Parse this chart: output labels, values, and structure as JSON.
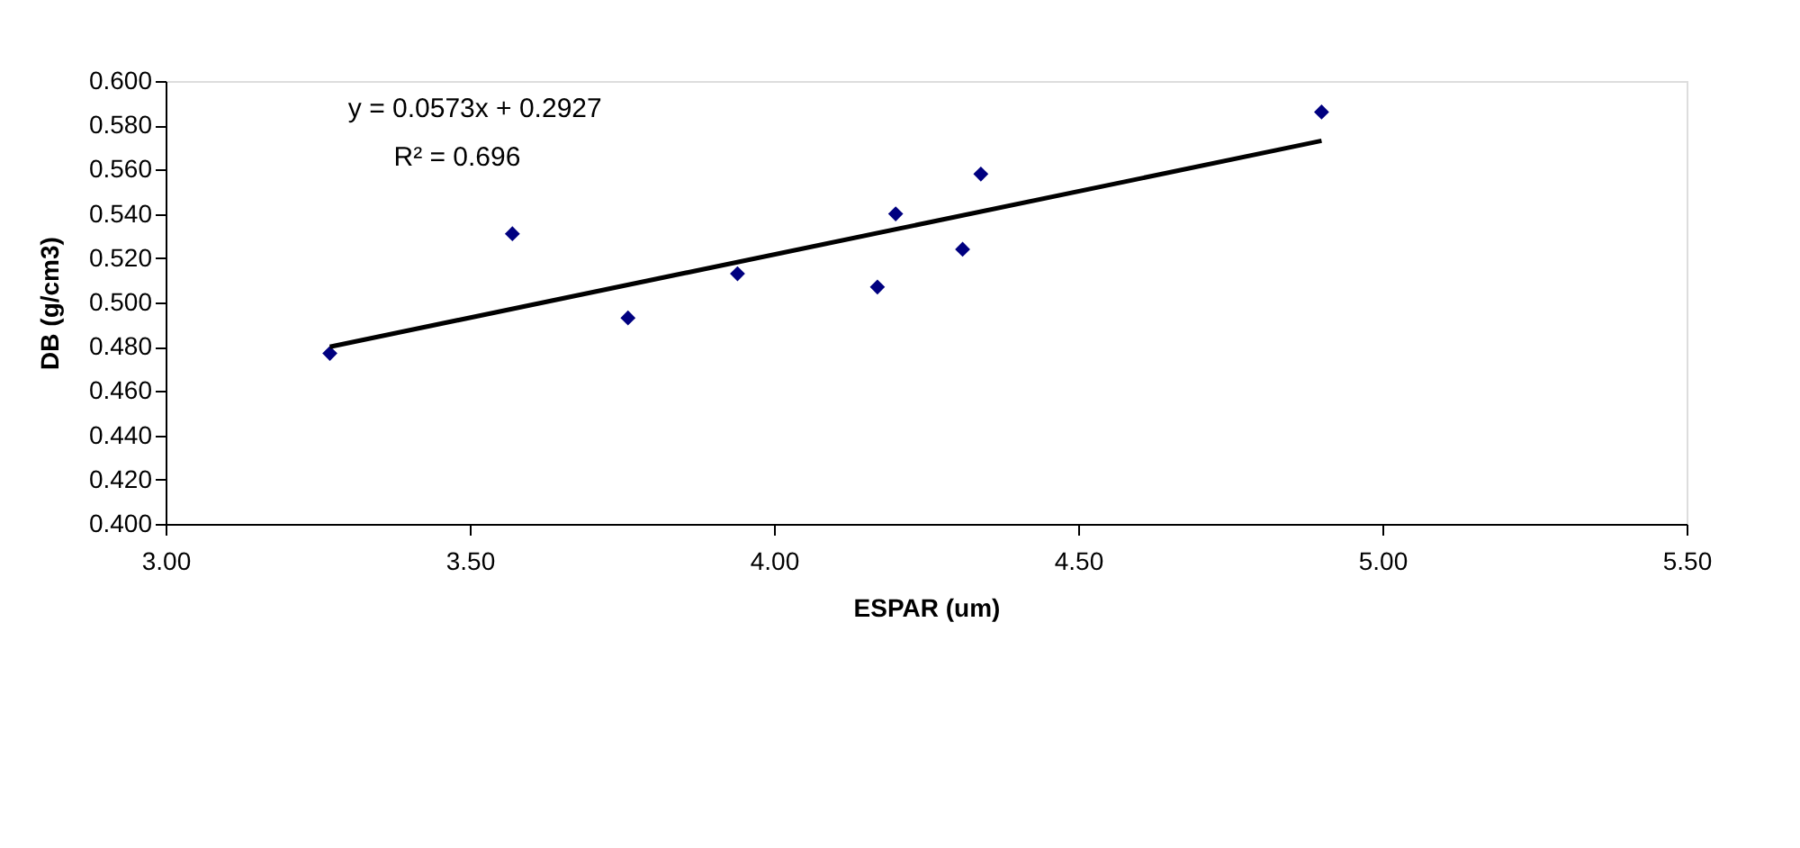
{
  "chart_data": {
    "type": "scatter",
    "xlabel": "ESPAR (um)",
    "ylabel": "DB (g/cm3)",
    "xlim": [
      3.0,
      5.5
    ],
    "xticks": [
      {
        "value": 3.0,
        "label": "3.00"
      },
      {
        "value": 3.5,
        "label": "3.50"
      },
      {
        "value": 4.0,
        "label": "4.00"
      },
      {
        "value": 4.5,
        "label": "4.50"
      },
      {
        "value": 5.0,
        "label": "5.00"
      },
      {
        "value": 5.5,
        "label": "5.50"
      }
    ],
    "ylim": [
      0.4,
      0.6
    ],
    "yticks": [
      {
        "value": 0.4,
        "label": "0.400"
      },
      {
        "value": 0.42,
        "label": "0.420"
      },
      {
        "value": 0.44,
        "label": "0.440"
      },
      {
        "value": 0.46,
        "label": "0.460"
      },
      {
        "value": 0.48,
        "label": "0.480"
      },
      {
        "value": 0.5,
        "label": "0.500"
      },
      {
        "value": 0.52,
        "label": "0.520"
      },
      {
        "value": 0.54,
        "label": "0.540"
      },
      {
        "value": 0.56,
        "label": "0.560"
      },
      {
        "value": 0.58,
        "label": "0.580"
      },
      {
        "value": 0.6,
        "label": "0.600"
      }
    ],
    "grid": false,
    "marker": "diamond",
    "series": [
      {
        "color": "#000080",
        "x": [
          3.27,
          3.57,
          3.76,
          3.94,
          4.17,
          4.2,
          4.31,
          4.34,
          4.9
        ],
        "values": [
          0.477,
          0.531,
          0.493,
          0.513,
          0.507,
          0.54,
          0.524,
          0.558,
          0.586
        ]
      },
      {
        "type": "line",
        "color": "#000000",
        "line_style": "solid",
        "marker": "none",
        "x": [
          3.27,
          4.9
        ],
        "values": [
          0.48,
          0.573
        ]
      }
    ],
    "annotations": [
      "y = 0.0573x + 0.2927",
      "R² = 0.696"
    ]
  }
}
